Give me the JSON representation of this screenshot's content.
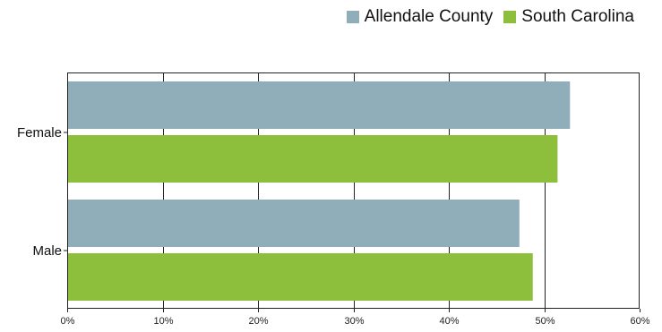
{
  "chart_data": {
    "type": "bar",
    "orientation": "horizontal",
    "categories": [
      "Female",
      "Male"
    ],
    "series": [
      {
        "name": "Allendale County",
        "color": "#8faeba",
        "values": [
          52.7,
          47.4
        ]
      },
      {
        "name": "South Carolina",
        "color": "#8dbe3c",
        "values": [
          51.4,
          48.8
        ]
      }
    ],
    "x_ticks": [
      "0%",
      "10%",
      "20%",
      "30%",
      "40%",
      "50%",
      "60%"
    ],
    "x_tick_values": [
      0,
      10,
      20,
      30,
      40,
      50,
      60
    ],
    "xlim": [
      0,
      60
    ],
    "grid": "vertical",
    "legend_position": "top-right",
    "title": "",
    "xlabel": "",
    "ylabel": ""
  }
}
